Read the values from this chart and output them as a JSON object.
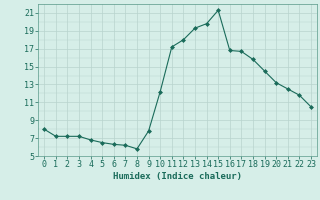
{
  "x": [
    0,
    1,
    2,
    3,
    4,
    5,
    6,
    7,
    8,
    9,
    10,
    11,
    12,
    13,
    14,
    15,
    16,
    17,
    18,
    19,
    20,
    21,
    22,
    23
  ],
  "y": [
    8.0,
    7.2,
    7.2,
    7.2,
    6.8,
    6.5,
    6.3,
    6.2,
    5.8,
    7.8,
    12.2,
    17.2,
    18.0,
    19.3,
    19.8,
    21.3,
    16.8,
    16.7,
    15.8,
    14.5,
    13.2,
    12.5,
    11.8,
    10.5
  ],
  "line_color": "#1a6b5a",
  "marker": "D",
  "marker_size": 2.0,
  "bg_color": "#d6eee8",
  "grid_color": "#b8d4ce",
  "grid_color_minor": "#c8deda",
  "xlabel": "Humidex (Indice chaleur)",
  "ylim": [
    5,
    22
  ],
  "xlim": [
    -0.5,
    23.5
  ],
  "yticks": [
    5,
    7,
    9,
    11,
    13,
    15,
    17,
    19,
    21
  ],
  "xticks": [
    0,
    1,
    2,
    3,
    4,
    5,
    6,
    7,
    8,
    9,
    10,
    11,
    12,
    13,
    14,
    15,
    16,
    17,
    18,
    19,
    20,
    21,
    22,
    23
  ],
  "tick_color": "#1a6b5a",
  "label_fontsize": 6.5,
  "tick_fontsize": 6.0,
  "spine_color": "#5a9a8a",
  "linewidth": 0.8
}
